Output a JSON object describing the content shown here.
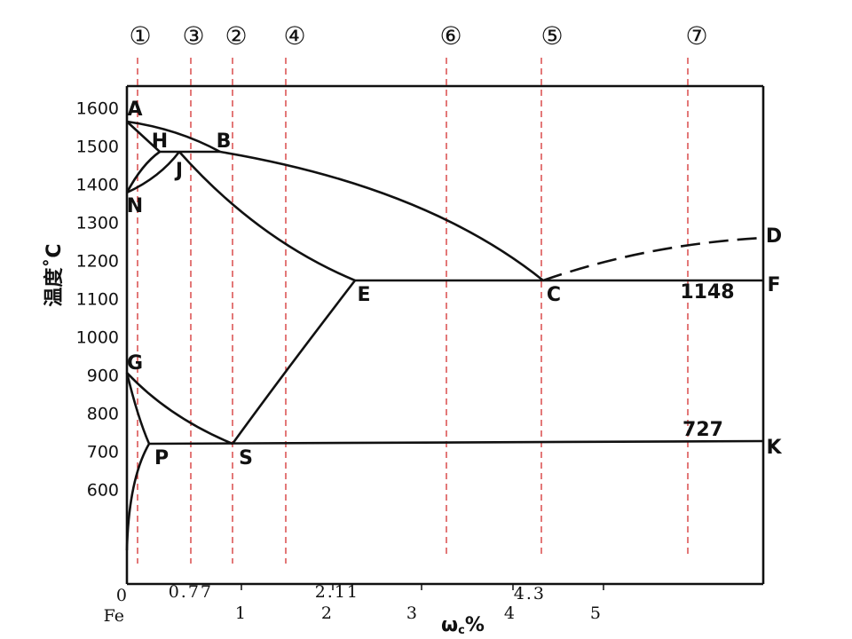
{
  "y_axis": {
    "label": "温度˚C",
    "ticks": [
      "1600",
      "1500",
      "1400",
      "1300",
      "1200",
      "1100",
      "1000",
      "900",
      "800",
      "700",
      "600"
    ]
  },
  "x_axis": {
    "label": "ω",
    "label_sub": "c",
    "label_unit": "%",
    "origin": "0",
    "origin_name": "Fe",
    "ticks": [
      "1",
      "2",
      "3",
      "4",
      "5"
    ],
    "annotations": [
      "0.77",
      "2.11",
      "4.3"
    ]
  },
  "points": [
    "A",
    "H",
    "B",
    "J",
    "N",
    "E",
    "C",
    "D",
    "F",
    "G",
    "P",
    "S",
    "K"
  ],
  "temperatures": [
    "1148",
    "727"
  ],
  "alloy_lines": [
    "①",
    "③",
    "②",
    "④",
    "⑥",
    "⑤",
    "⑦"
  ]
}
